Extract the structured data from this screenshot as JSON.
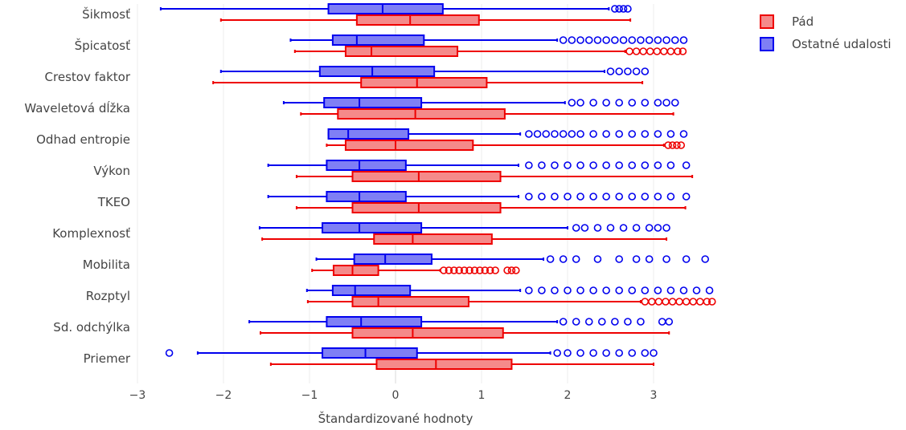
{
  "chart_data": {
    "type": "box",
    "orientation": "horizontal",
    "title": "",
    "xlabel": "Štandardizované hodnoty",
    "ylabel": "",
    "xlim": [
      -3,
      3.8
    ],
    "xticks": [
      -3,
      -2,
      -1,
      0,
      1,
      2,
      3
    ],
    "xtick_labels": [
      "−3",
      "−2",
      "−1",
      "0",
      "1",
      "2",
      "3"
    ],
    "grid": true,
    "legend_position": "top-right",
    "categories": [
      "Šikmosť",
      "Špicatosť",
      "Crestov faktor",
      "Waveletová dĺžka",
      "Odhad entropie",
      "Výkon",
      "TKEO",
      "Komplexnosť",
      "Mobilita",
      "Rozptyl",
      "Sd. odchýlka",
      "Priemer"
    ],
    "series": [
      {
        "name": "Ostatné udalosti",
        "color": "#0000ee",
        "fill": "#7f7ff5",
        "boxes": [
          {
            "whislo": -2.73,
            "q1": -0.78,
            "med": -0.15,
            "q3": 0.55,
            "whishi": 2.48,
            "outliers": [
              2.55,
              2.6,
              2.65,
              2.7
            ]
          },
          {
            "whislo": -1.22,
            "q1": -0.73,
            "med": -0.45,
            "q3": 0.33,
            "whishi": 1.88,
            "outliers": [
              1.95,
              2.05,
              2.15,
              2.25,
              2.35,
              2.45,
              2.55,
              2.65,
              2.75,
              2.85,
              2.95,
              3.05,
              3.15,
              3.25,
              3.35
            ]
          },
          {
            "whislo": -2.03,
            "q1": -0.88,
            "med": -0.27,
            "q3": 0.45,
            "whishi": 2.43,
            "outliers": [
              2.5,
              2.6,
              2.7,
              2.8,
              2.9
            ]
          },
          {
            "whislo": -1.3,
            "q1": -0.83,
            "med": -0.42,
            "q3": 0.3,
            "whishi": 1.97,
            "outliers": [
              2.05,
              2.15,
              2.3,
              2.45,
              2.6,
              2.75,
              2.9,
              3.05,
              3.15,
              3.25
            ]
          },
          {
            "whislo": -0.78,
            "q1": -0.78,
            "med": -0.55,
            "q3": 0.15,
            "whishi": 1.45,
            "outliers": [
              1.55,
              1.65,
              1.75,
              1.85,
              1.95,
              2.05,
              2.15,
              2.3,
              2.45,
              2.6,
              2.75,
              2.9,
              3.05,
              3.2,
              3.35
            ]
          },
          {
            "whislo": -1.48,
            "q1": -0.8,
            "med": -0.42,
            "q3": 0.12,
            "whishi": 1.43,
            "outliers": [
              1.55,
              1.7,
              1.85,
              2.0,
              2.15,
              2.3,
              2.45,
              2.6,
              2.75,
              2.9,
              3.05,
              3.2,
              3.38
            ]
          },
          {
            "whislo": -1.48,
            "q1": -0.8,
            "med": -0.42,
            "q3": 0.12,
            "whishi": 1.43,
            "outliers": [
              1.55,
              1.7,
              1.85,
              2.0,
              2.15,
              2.3,
              2.45,
              2.6,
              2.75,
              2.9,
              3.05,
              3.2,
              3.38
            ]
          },
          {
            "whislo": -1.58,
            "q1": -0.85,
            "med": -0.42,
            "q3": 0.3,
            "whishi": 2.0,
            "outliers": [
              2.1,
              2.2,
              2.35,
              2.5,
              2.65,
              2.8,
              2.95,
              3.05,
              3.15
            ]
          },
          {
            "whislo": -0.92,
            "q1": -0.48,
            "med": -0.12,
            "q3": 0.42,
            "whishi": 1.72,
            "outliers": [
              1.8,
              1.95,
              2.1,
              2.35,
              2.6,
              2.8,
              2.95,
              3.15,
              3.38,
              3.6
            ]
          },
          {
            "whislo": -1.03,
            "q1": -0.73,
            "med": -0.47,
            "q3": 0.17,
            "whishi": 1.45,
            "outliers": [
              1.55,
              1.7,
              1.85,
              2.0,
              2.15,
              2.3,
              2.45,
              2.6,
              2.75,
              2.9,
              3.05,
              3.2,
              3.35,
              3.5,
              3.65
            ]
          },
          {
            "whislo": -1.7,
            "q1": -0.8,
            "med": -0.4,
            "q3": 0.3,
            "whishi": 1.88,
            "outliers": [
              1.95,
              2.1,
              2.25,
              2.4,
              2.55,
              2.7,
              2.85,
              3.1,
              3.18
            ]
          },
          {
            "whislo": -2.3,
            "q1": -0.85,
            "med": -0.35,
            "q3": 0.25,
            "whishi": 1.8,
            "outliers": [
              -2.63,
              1.88,
              2.0,
              2.15,
              2.3,
              2.45,
              2.6,
              2.75,
              2.9,
              3.0
            ]
          }
        ]
      },
      {
        "name": "Pád",
        "color": "#ee0000",
        "fill": "#f58a8a",
        "boxes": [
          {
            "whislo": -2.03,
            "q1": -0.45,
            "med": 0.17,
            "q3": 0.97,
            "whishi": 2.73,
            "outliers": []
          },
          {
            "whislo": -1.17,
            "q1": -0.58,
            "med": -0.28,
            "q3": 0.72,
            "whishi": 2.67,
            "outliers": [
              2.72,
              2.8,
              2.88,
              2.96,
              3.04,
              3.12,
              3.2,
              3.28,
              3.34
            ]
          },
          {
            "whislo": -2.12,
            "q1": -0.4,
            "med": 0.25,
            "q3": 1.06,
            "whishi": 2.87,
            "outliers": []
          },
          {
            "whislo": -1.1,
            "q1": -0.67,
            "med": 0.23,
            "q3": 1.27,
            "whishi": 3.23,
            "outliers": []
          },
          {
            "whislo": -0.8,
            "q1": -0.58,
            "med": 0.0,
            "q3": 0.9,
            "whishi": 3.12,
            "outliers": [
              3.17,
              3.22,
              3.27,
              3.32
            ]
          },
          {
            "whislo": -1.15,
            "q1": -0.5,
            "med": 0.27,
            "q3": 1.22,
            "whishi": 3.45,
            "outliers": []
          },
          {
            "whislo": -1.15,
            "q1": -0.5,
            "med": 0.27,
            "q3": 1.22,
            "whishi": 3.37,
            "outliers": []
          },
          {
            "whislo": -1.55,
            "q1": -0.25,
            "med": 0.2,
            "q3": 1.12,
            "whishi": 3.15,
            "outliers": []
          },
          {
            "whislo": -0.97,
            "q1": -0.72,
            "med": -0.5,
            "q3": -0.2,
            "whishi": 0.52,
            "outliers": [
              0.56,
              0.62,
              0.68,
              0.74,
              0.8,
              0.86,
              0.92,
              0.98,
              1.04,
              1.1,
              1.16,
              1.3,
              1.35,
              1.4
            ]
          },
          {
            "whislo": -1.02,
            "q1": -0.5,
            "med": -0.2,
            "q3": 0.85,
            "whishi": 2.85,
            "outliers": [
              2.9,
              2.98,
              3.06,
              3.14,
              3.22,
              3.3,
              3.38,
              3.46,
              3.54,
              3.62,
              3.68
            ]
          },
          {
            "whislo": -1.57,
            "q1": -0.5,
            "med": 0.2,
            "q3": 1.25,
            "whishi": 3.18,
            "outliers": []
          },
          {
            "whislo": -1.45,
            "q1": -0.22,
            "med": 0.47,
            "q3": 1.35,
            "whishi": 3.0,
            "outliers": []
          }
        ]
      }
    ]
  }
}
